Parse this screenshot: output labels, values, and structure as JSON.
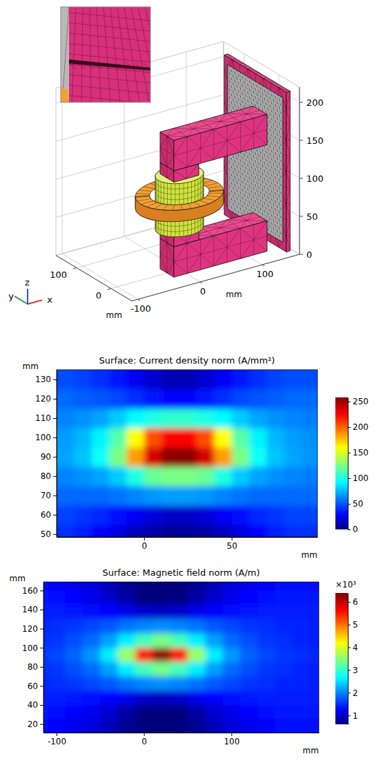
{
  "chart_data": [
    {
      "type": "mesh3d",
      "xlim": [
        -110,
        160
      ],
      "ylim": [
        -60,
        160
      ],
      "zlim": [
        0,
        220
      ],
      "xticks": [
        -100,
        0,
        100
      ],
      "yticks": [
        0,
        100
      ],
      "zticks": [
        0,
        50,
        100,
        150,
        200
      ],
      "xlabel": "mm",
      "ylabel": "mm",
      "triad_labels": [
        "x",
        "y",
        "z"
      ]
    },
    {
      "type": "heatmap",
      "title": "Surface: Current density norm (A/mm²)",
      "xlabel": "mm",
      "ylabel": "mm",
      "xlim": [
        -50,
        99
      ],
      "ylim": [
        48.5,
        135
      ],
      "xticks": [
        0,
        50
      ],
      "yticks": [
        50,
        60,
        70,
        80,
        90,
        100,
        110,
        120,
        130
      ],
      "x": [
        -45,
        -35,
        -25,
        -15,
        -5,
        5,
        15,
        25,
        35,
        45,
        55,
        65,
        75,
        85,
        95
      ],
      "y": [
        50,
        60,
        70,
        80,
        90,
        100,
        110,
        120,
        130
      ],
      "z": [
        [
          40,
          36,
          30,
          22,
          14,
          8,
          5,
          5,
          8,
          14,
          22,
          30,
          36,
          40,
          40
        ],
        [
          45,
          42,
          38,
          32,
          26,
          20,
          16,
          16,
          20,
          26,
          32,
          38,
          42,
          45,
          45
        ],
        [
          55,
          55,
          55,
          58,
          62,
          66,
          68,
          68,
          66,
          62,
          58,
          55,
          55,
          55,
          55
        ],
        [
          62,
          65,
          70,
          80,
          100,
          120,
          125,
          125,
          120,
          100,
          80,
          70,
          65,
          62,
          60
        ],
        [
          70,
          78,
          95,
          125,
          185,
          235,
          255,
          255,
          235,
          185,
          125,
          95,
          78,
          70,
          66
        ],
        [
          68,
          75,
          90,
          115,
          160,
          205,
          225,
          225,
          205,
          160,
          115,
          90,
          75,
          68,
          65
        ],
        [
          62,
          65,
          70,
          80,
          92,
          100,
          105,
          105,
          100,
          92,
          80,
          70,
          65,
          62,
          60
        ],
        [
          55,
          52,
          50,
          46,
          40,
          34,
          30,
          30,
          34,
          40,
          46,
          50,
          52,
          55,
          55
        ],
        [
          48,
          45,
          40,
          34,
          26,
          18,
          12,
          12,
          18,
          26,
          34,
          40,
          45,
          48,
          48
        ]
      ],
      "color_range": [
        0,
        258
      ],
      "color_ticks": [
        0,
        50,
        100,
        150,
        200,
        250
      ]
    },
    {
      "type": "heatmap",
      "title": "Surface: Magnetic field norm (A/m)",
      "xlabel": "mm",
      "ylabel": "mm",
      "xlim": [
        -115,
        200
      ],
      "ylim": [
        11,
        169
      ],
      "xticks": [
        -100,
        0,
        100
      ],
      "yticks": [
        20,
        40,
        60,
        80,
        100,
        120,
        140,
        160
      ],
      "x": [
        -120,
        -100,
        -80,
        -60,
        -40,
        -20,
        0,
        20,
        40,
        60,
        80,
        100,
        120,
        140,
        160,
        180,
        200
      ],
      "y": [
        18,
        33,
        48,
        63,
        78,
        93,
        108,
        123,
        138,
        153,
        168
      ],
      "z": [
        [
          1300,
          1250,
          1150,
          1050,
          900,
          700,
          450,
          350,
          450,
          700,
          900,
          1050,
          1150,
          1250,
          1300,
          1300,
          1300
        ],
        [
          1350,
          1300,
          1250,
          1150,
          1000,
          800,
          600,
          550,
          600,
          800,
          1000,
          1150,
          1250,
          1300,
          1350,
          1350,
          1350
        ],
        [
          1400,
          1400,
          1350,
          1300,
          1250,
          1150,
          1000,
          950,
          1000,
          1150,
          1250,
          1300,
          1350,
          1400,
          1400,
          1400,
          1400
        ],
        [
          1450,
          1500,
          1550,
          1650,
          1750,
          1900,
          2000,
          2050,
          2000,
          1900,
          1750,
          1650,
          1550,
          1500,
          1450,
          1450,
          1400
        ],
        [
          1500,
          1550,
          1700,
          1850,
          2150,
          2600,
          3100,
          3400,
          3100,
          2600,
          2150,
          1850,
          1700,
          1550,
          1500,
          1450,
          1400
        ],
        [
          1550,
          1650,
          1800,
          2100,
          2600,
          3600,
          5500,
          6300,
          5500,
          3600,
          2600,
          2100,
          1800,
          1650,
          1550,
          1500,
          1450
        ],
        [
          1500,
          1550,
          1700,
          1850,
          2150,
          2600,
          3100,
          3400,
          3100,
          2600,
          2150,
          1850,
          1700,
          1550,
          1500,
          1450,
          1400
        ],
        [
          1450,
          1500,
          1550,
          1650,
          1750,
          1900,
          2000,
          2050,
          2000,
          1900,
          1750,
          1650,
          1550,
          1500,
          1450,
          1450,
          1400
        ],
        [
          1400,
          1400,
          1350,
          1300,
          1250,
          1150,
          1000,
          950,
          1000,
          1150,
          1250,
          1300,
          1350,
          1400,
          1400,
          1400,
          1400
        ],
        [
          1350,
          1300,
          1250,
          1150,
          1000,
          800,
          600,
          550,
          600,
          800,
          1000,
          1150,
          1250,
          1300,
          1350,
          1350,
          1350
        ],
        [
          1300,
          1250,
          1150,
          1050,
          900,
          700,
          450,
          350,
          450,
          700,
          900,
          1050,
          1150,
          1250,
          1300,
          1300,
          1300
        ]
      ],
      "color_range": [
        610,
        6390
      ],
      "color_ticks": [
        {
          "value": 1000,
          "label": "1"
        },
        {
          "value": 2000,
          "label": "2"
        },
        {
          "value": 3000,
          "label": "3"
        },
        {
          "value": 4000,
          "label": "4"
        },
        {
          "value": 5000,
          "label": "5"
        },
        {
          "value": 6000,
          "label": "6"
        }
      ],
      "color_title": "×10³"
    }
  ]
}
